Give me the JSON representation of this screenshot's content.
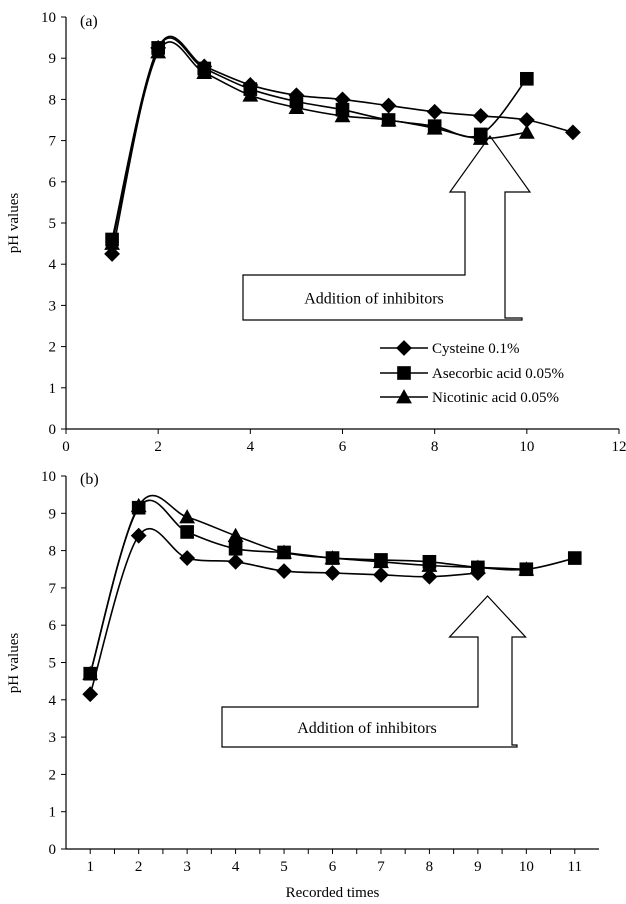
{
  "chart_data": [
    {
      "type": "line",
      "panel_label": "(a)",
      "xlabel": "",
      "ylabel": "pH values",
      "xlim": [
        0,
        12
      ],
      "ylim": [
        0,
        10
      ],
      "x_ticks": [
        0,
        2,
        4,
        6,
        8,
        10,
        12
      ],
      "y_ticks": [
        0,
        1,
        2,
        3,
        4,
        5,
        6,
        7,
        8,
        9,
        10
      ],
      "grid": false,
      "legend_position": "bottom-right",
      "series": [
        {
          "name": "Cysteine 0.1%",
          "marker": "diamond",
          "x": [
            1,
            2,
            3,
            4,
            5,
            6,
            7,
            8,
            9,
            10,
            11
          ],
          "y": [
            4.25,
            9.25,
            8.8,
            8.35,
            8.1,
            8.0,
            7.85,
            7.7,
            7.6,
            7.5,
            7.2
          ]
        },
        {
          "name": "Asecorbic acid  0.05%",
          "marker": "square",
          "x": [
            1,
            2,
            3,
            4,
            5,
            6,
            7,
            8,
            9,
            10
          ],
          "y": [
            4.6,
            9.25,
            8.75,
            8.25,
            7.95,
            7.75,
            7.5,
            7.35,
            7.15,
            8.5
          ]
        },
        {
          "name": "Nicotinic  acid  0.05%",
          "marker": "triangle",
          "x": [
            1,
            2,
            3,
            4,
            5,
            6,
            7,
            8,
            9,
            10
          ],
          "y": [
            4.5,
            9.15,
            8.65,
            8.1,
            7.8,
            7.6,
            7.5,
            7.3,
            7.05,
            7.2
          ]
        }
      ],
      "annotation": {
        "text": "Addition of inhibitors",
        "points_to_x": 9.2,
        "points_to_y": 7.1
      }
    },
    {
      "type": "line",
      "panel_label": "(b)",
      "xlabel": "Recorded times",
      "ylabel": "pH values",
      "xlim": [
        0.5,
        11.5
      ],
      "ylim": [
        0,
        10
      ],
      "x_ticks": [
        1,
        2,
        3,
        4,
        5,
        6,
        7,
        8,
        9,
        10,
        11
      ],
      "y_ticks": [
        0,
        1,
        2,
        3,
        4,
        5,
        6,
        7,
        8,
        9,
        10
      ],
      "grid": false,
      "series": [
        {
          "marker": "diamond",
          "x": [
            1,
            2,
            3,
            4,
            5,
            6,
            7,
            8,
            9
          ],
          "y": [
            4.15,
            8.4,
            7.8,
            7.7,
            7.45,
            7.4,
            7.35,
            7.3,
            7.4
          ]
        },
        {
          "marker": "square",
          "x": [
            1,
            2,
            3,
            4,
            5,
            6,
            7,
            8,
            9,
            10,
            11
          ],
          "y": [
            4.7,
            9.15,
            8.5,
            8.05,
            7.95,
            7.8,
            7.75,
            7.7,
            7.55,
            7.5,
            7.8
          ]
        },
        {
          "marker": "triangle",
          "x": [
            1,
            2,
            3,
            4,
            5,
            6,
            7,
            8,
            9,
            10
          ],
          "y": [
            4.7,
            9.2,
            8.9,
            8.4,
            7.95,
            7.8,
            7.7,
            7.6,
            7.55,
            7.5
          ]
        }
      ],
      "annotation": {
        "text": "Addition of inhibitors",
        "points_to_x": 9.2,
        "points_to_y": 7.4
      }
    }
  ]
}
